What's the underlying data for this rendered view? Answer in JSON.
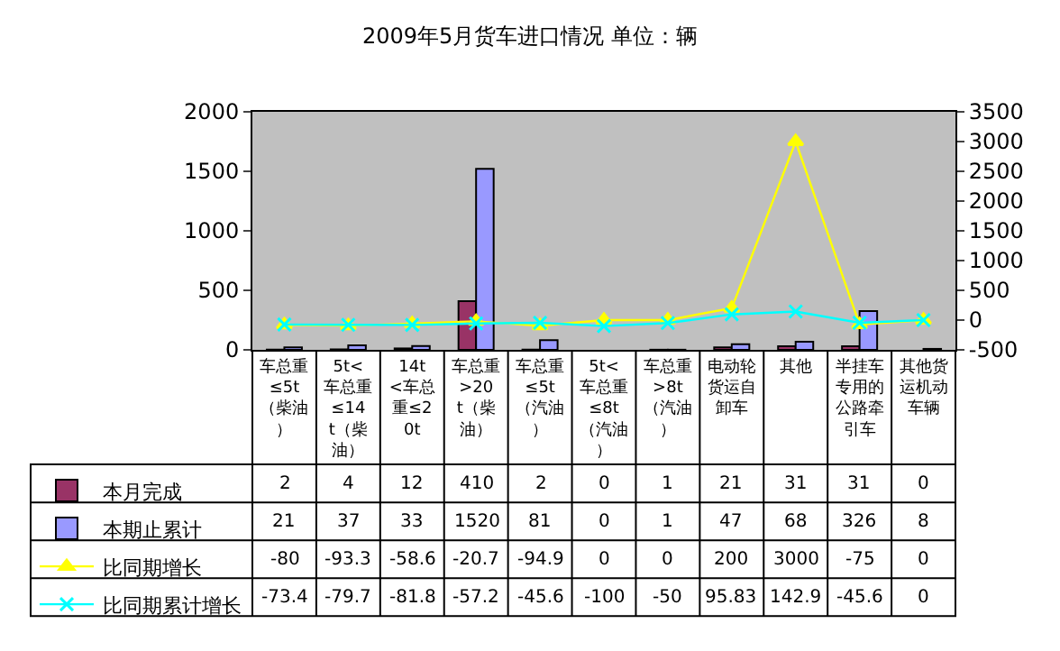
{
  "chart_data": {
    "type": "bar",
    "title": "2009年5月货车进口情况 单位：辆",
    "categories": [
      "车总重≤5t（柴油）",
      "5t<车总重≤14t（柴油）",
      "14t<车总重≤20t",
      "车总重>20t（柴油）",
      "车总重≤5t（汽油）",
      "5t<车总重≤8t（汽油）",
      "车总重>8t（汽油）",
      "电动轮货运自卸车",
      "其他",
      "半挂车专用的公路牵引车",
      "其他货运机动车辆"
    ],
    "series": [
      {
        "name": "本月完成",
        "color": "#993366",
        "values": [
          2,
          4,
          12,
          410,
          2,
          0,
          1,
          21,
          31,
          31,
          0
        ]
      },
      {
        "name": "本期止累计",
        "color": "#9999ff",
        "values": [
          21,
          37,
          33,
          1520,
          81,
          0,
          1,
          47,
          68,
          326,
          8
        ]
      },
      {
        "name": "比同期增长",
        "type": "line",
        "axis": "y2",
        "marker": "triangle",
        "color": "#ffff00",
        "values": [
          -80,
          -93.3,
          -58.6,
          -20.7,
          -94.9,
          0,
          0,
          200,
          3000,
          -75,
          0
        ]
      },
      {
        "name": "比同期累计增长",
        "type": "line",
        "axis": "y2",
        "marker": "cross",
        "color": "#00ffff",
        "values": [
          -73.4,
          -79.7,
          -81.8,
          -57.2,
          -45.6,
          -100,
          -50,
          95.83,
          142.9,
          -45.6,
          0
        ]
      }
    ],
    "ylim": [
      0,
      2000
    ],
    "yticks": [
      0,
      500,
      1000,
      1500,
      2000
    ],
    "y2lim": [
      -500,
      3500
    ],
    "y2ticks": [
      -500,
      0,
      500,
      1000,
      1500,
      2000,
      2500,
      3000,
      3500
    ],
    "data_labels": true,
    "legend": "bottom",
    "grid": false
  }
}
